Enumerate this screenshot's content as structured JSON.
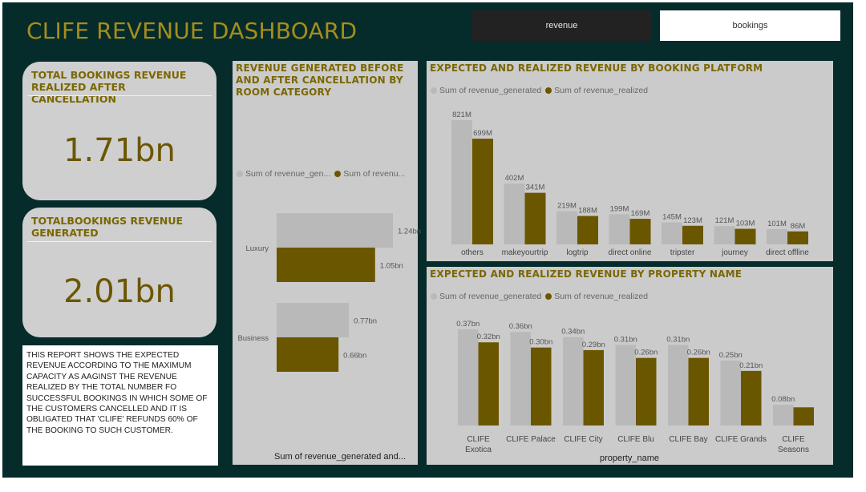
{
  "header": {
    "title": "CLIFE REVENUE DASHBOARD",
    "tabs": [
      "revenue",
      "bookings"
    ]
  },
  "kpis": [
    {
      "label": "TOTAL BOOKINGS REVENUE REALIZED AFTER CANCELLATION",
      "value": "1.71bn"
    },
    {
      "label": "TOTALBOOKINGS REVENUE GENERATED",
      "value": "2.01bn"
    }
  ],
  "description": "THIS REPORT SHOWS THE EXPECTED REVENUE ACCORDING TO THE MAXIMUM CAPACITY AS AAGINST THE REVENUE REALIZED BY THE TOTAL NUMBER FO SUCCESSFUL BOOKINGS IN WHICH SOME OF THE CUSTOMERS CANCELLED AND IT IS OBLIGATED THAT 'CLIFE' REFUNDS 60% OF THE BOOKING TO SUCH CUSTOMER.",
  "colors": {
    "generated": "#b9b9b9",
    "realized": "#6b5600",
    "title": "#a48e1c",
    "background": "#052b2b",
    "panel": "#cbcbcb"
  },
  "chart_data": [
    {
      "type": "bar",
      "orientation": "horizontal",
      "title": "REVENUE GENERATED BEFORE AND AFTER CANCELLATION BY ROOM CATEGORY",
      "legend_labels": [
        "Sum of revenue_gen...",
        "Sum of revenu..."
      ],
      "xlabel": "Sum of revenue_generated and...",
      "categories": [
        "Luxury",
        "Business"
      ],
      "series": [
        {
          "name": "Sum of revenue_generated",
          "values": [
            1.24,
            0.77
          ],
          "labels": [
            "1.24bn",
            "0.77bn"
          ]
        },
        {
          "name": "Sum of revenue_realized",
          "values": [
            1.05,
            0.66
          ],
          "labels": [
            "1.05bn",
            "0.66bn"
          ]
        }
      ],
      "unit": "bn"
    },
    {
      "type": "bar",
      "title": "EXPECTED AND REALIZED REVENUE BY BOOKING PLATFORM",
      "legend_labels": [
        "Sum of revenue_generated",
        "Sum of revenue_realized"
      ],
      "categories": [
        "others",
        "makeyourtrip",
        "logtrip",
        "direct online",
        "tripster",
        "journey",
        "direct offline"
      ],
      "series": [
        {
          "name": "Sum of revenue_generated",
          "values": [
            821,
            402,
            219,
            199,
            145,
            121,
            101
          ],
          "labels": [
            "821M",
            "402M",
            "219M",
            "199M",
            "145M",
            "121M",
            "101M"
          ]
        },
        {
          "name": "Sum of revenue_realized",
          "values": [
            699,
            341,
            188,
            169,
            123,
            103,
            86
          ],
          "labels": [
            "699M",
            "341M",
            "188M",
            "169M",
            "123M",
            "103M",
            "86M"
          ]
        }
      ],
      "unit": "M"
    },
    {
      "type": "bar",
      "title": "EXPECTED AND REALIZED REVENUE BY PROPERTY NAME",
      "legend_labels": [
        "Sum of revenue_generated",
        "Sum of revenue_realized"
      ],
      "xlabel": "property_name",
      "categories": [
        "CLIFE Exotica",
        "CLIFE Palace",
        "CLIFE City",
        "CLIFE Blu",
        "CLIFE Bay",
        "CLIFE Grands",
        "CLIFE Seasons"
      ],
      "series": [
        {
          "name": "Sum of revenue_generated",
          "values": [
            0.37,
            0.36,
            0.34,
            0.31,
            0.31,
            0.25,
            0.08
          ],
          "labels": [
            "0.37bn",
            "0.36bn",
            "0.34bn",
            "0.31bn",
            "0.31bn",
            "0.25bn",
            "0.08bn"
          ]
        },
        {
          "name": "Sum of revenue_realized",
          "values": [
            0.32,
            0.3,
            0.29,
            0.26,
            0.26,
            0.21,
            null
          ],
          "labels": [
            "0.32bn",
            "0.30bn",
            "0.29bn",
            "0.26bn",
            "0.26bn",
            "0.21bn",
            ""
          ]
        }
      ],
      "realized_value_unlabeled_last": 0.07,
      "unit": "bn"
    }
  ]
}
